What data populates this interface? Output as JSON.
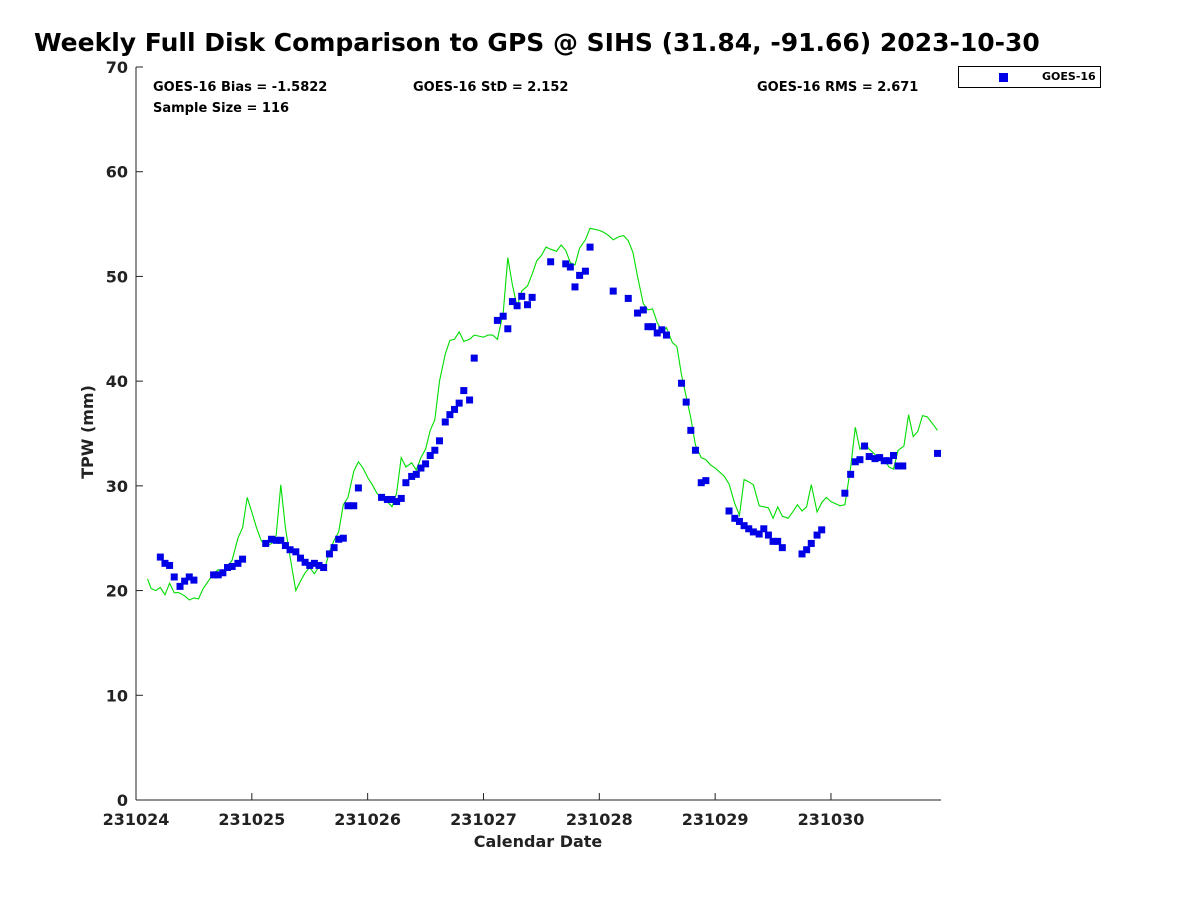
{
  "chart_data": {
    "type": "scatter",
    "title": "Weekly Full Disk Comparison to GPS @ SIHS (31.84, -91.66) 2023-10-30",
    "xlabel": "Calendar Date",
    "ylabel": "TPW (mm)",
    "xlim": [
      231024,
      231030.95
    ],
    "ylim": [
      0,
      70
    ],
    "x_tick_values": [
      231024,
      231025,
      231026,
      231027,
      231028,
      231029,
      231030
    ],
    "x_ticks": [
      "231024",
      "231025",
      "231026",
      "231027",
      "231028",
      "231029",
      "231030"
    ],
    "y_ticks": [
      0,
      10,
      20,
      30,
      40,
      50,
      60,
      70
    ],
    "grid": false,
    "legend_position": "top-right",
    "stats": {
      "bias": "GOES-16 Bias = -1.5822",
      "std": "GOES-16 StD = 2.152",
      "rms": "GOES-16 RMS = 2.671",
      "sample": "Sample Size = 116"
    },
    "series": [
      {
        "name": "GOES-16",
        "style": "markers",
        "color": "#0000e6",
        "points": [
          [
            231024.21,
            23.2
          ],
          [
            231024.25,
            22.6
          ],
          [
            231024.29,
            22.4
          ],
          [
            231024.33,
            21.3
          ],
          [
            231024.38,
            20.4
          ],
          [
            231024.42,
            20.9
          ],
          [
            231024.46,
            21.3
          ],
          [
            231024.5,
            21.0
          ],
          [
            231024.67,
            21.5
          ],
          [
            231024.71,
            21.5
          ],
          [
            231024.75,
            21.7
          ],
          [
            231024.79,
            22.2
          ],
          [
            231024.83,
            22.3
          ],
          [
            231024.88,
            22.6
          ],
          [
            231024.92,
            23.0
          ],
          [
            231025.12,
            24.5
          ],
          [
            231025.17,
            24.9
          ],
          [
            231025.21,
            24.8
          ],
          [
            231025.25,
            24.8
          ],
          [
            231025.29,
            24.3
          ],
          [
            231025.33,
            23.9
          ],
          [
            231025.38,
            23.7
          ],
          [
            231025.42,
            23.1
          ],
          [
            231025.46,
            22.7
          ],
          [
            231025.5,
            22.4
          ],
          [
            231025.54,
            22.6
          ],
          [
            231025.58,
            22.4
          ],
          [
            231025.62,
            22.2
          ],
          [
            231025.67,
            23.5
          ],
          [
            231025.71,
            24.1
          ],
          [
            231025.75,
            24.9
          ],
          [
            231025.79,
            25.0
          ],
          [
            231025.83,
            28.1
          ],
          [
            231025.88,
            28.1
          ],
          [
            231025.92,
            29.8
          ],
          [
            231026.12,
            28.9
          ],
          [
            231026.17,
            28.7
          ],
          [
            231026.21,
            28.7
          ],
          [
            231026.25,
            28.5
          ],
          [
            231026.29,
            28.8
          ],
          [
            231026.33,
            30.3
          ],
          [
            231026.38,
            30.9
          ],
          [
            231026.42,
            31.1
          ],
          [
            231026.46,
            31.7
          ],
          [
            231026.5,
            32.1
          ],
          [
            231026.54,
            32.9
          ],
          [
            231026.58,
            33.4
          ],
          [
            231026.62,
            34.3
          ],
          [
            231026.67,
            36.1
          ],
          [
            231026.71,
            36.8
          ],
          [
            231026.75,
            37.3
          ],
          [
            231026.79,
            37.9
          ],
          [
            231026.83,
            39.1
          ],
          [
            231026.88,
            38.2
          ],
          [
            231026.92,
            42.2
          ],
          [
            231027.12,
            45.8
          ],
          [
            231027.17,
            46.2
          ],
          [
            231027.21,
            45.0
          ],
          [
            231027.25,
            47.6
          ],
          [
            231027.29,
            47.2
          ],
          [
            231027.33,
            48.1
          ],
          [
            231027.38,
            47.3
          ],
          [
            231027.42,
            48.0
          ],
          [
            231027.58,
            51.4
          ],
          [
            231027.71,
            51.2
          ],
          [
            231027.75,
            50.9
          ],
          [
            231027.79,
            49.0
          ],
          [
            231027.83,
            50.1
          ],
          [
            231027.88,
            50.5
          ],
          [
            231027.92,
            52.8
          ],
          [
            231028.12,
            48.6
          ],
          [
            231028.25,
            47.9
          ],
          [
            231028.33,
            46.5
          ],
          [
            231028.38,
            46.8
          ],
          [
            231028.42,
            45.2
          ],
          [
            231028.46,
            45.2
          ],
          [
            231028.5,
            44.6
          ],
          [
            231028.54,
            44.9
          ],
          [
            231028.58,
            44.4
          ],
          [
            231028.71,
            39.8
          ],
          [
            231028.75,
            38.0
          ],
          [
            231028.79,
            35.3
          ],
          [
            231028.83,
            33.4
          ],
          [
            231028.88,
            30.3
          ],
          [
            231028.92,
            30.5
          ],
          [
            231029.12,
            27.6
          ],
          [
            231029.17,
            26.9
          ],
          [
            231029.21,
            26.6
          ],
          [
            231029.25,
            26.2
          ],
          [
            231029.29,
            25.9
          ],
          [
            231029.33,
            25.6
          ],
          [
            231029.38,
            25.4
          ],
          [
            231029.42,
            25.9
          ],
          [
            231029.46,
            25.3
          ],
          [
            231029.5,
            24.7
          ],
          [
            231029.54,
            24.7
          ],
          [
            231029.58,
            24.1
          ],
          [
            231029.75,
            23.5
          ],
          [
            231029.79,
            23.9
          ],
          [
            231029.83,
            24.5
          ],
          [
            231029.88,
            25.3
          ],
          [
            231029.92,
            25.8
          ],
          [
            231030.12,
            29.3
          ],
          [
            231030.17,
            31.1
          ],
          [
            231030.21,
            32.3
          ],
          [
            231030.25,
            32.5
          ],
          [
            231030.29,
            33.8
          ],
          [
            231030.33,
            32.8
          ],
          [
            231030.38,
            32.6
          ],
          [
            231030.42,
            32.7
          ],
          [
            231030.46,
            32.4
          ],
          [
            231030.5,
            32.4
          ],
          [
            231030.54,
            32.9
          ],
          [
            231030.58,
            31.9
          ],
          [
            231030.62,
            31.9
          ],
          [
            231030.92,
            33.1
          ]
        ]
      },
      {
        "style": "line",
        "color": "#00dd00",
        "points": [
          [
            231024.1,
            21.1
          ],
          [
            231024.13,
            20.2
          ],
          [
            231024.17,
            20.0
          ],
          [
            231024.21,
            20.3
          ],
          [
            231024.25,
            19.6
          ],
          [
            231024.29,
            20.7
          ],
          [
            231024.33,
            19.8
          ],
          [
            231024.37,
            19.8
          ],
          [
            231024.42,
            19.5
          ],
          [
            231024.46,
            19.1
          ],
          [
            231024.5,
            19.3
          ],
          [
            231024.54,
            19.2
          ],
          [
            231024.58,
            20.2
          ],
          [
            231024.63,
            21.0
          ],
          [
            231024.67,
            21.6
          ],
          [
            231024.71,
            22.0
          ],
          [
            231024.75,
            21.7
          ],
          [
            231024.79,
            22.3
          ],
          [
            231024.83,
            22.9
          ],
          [
            231024.88,
            25.0
          ],
          [
            231024.92,
            26.0
          ],
          [
            231024.96,
            28.9
          ],
          [
            231025.0,
            27.5
          ],
          [
            231025.04,
            26.0
          ],
          [
            231025.08,
            24.8
          ],
          [
            231025.12,
            24.2
          ],
          [
            231025.17,
            24.5
          ],
          [
            231025.21,
            25.3
          ],
          [
            231025.25,
            30.1
          ],
          [
            231025.29,
            26.0
          ],
          [
            231025.33,
            23.2
          ],
          [
            231025.38,
            20.0
          ],
          [
            231025.42,
            20.9
          ],
          [
            231025.46,
            21.7
          ],
          [
            231025.5,
            22.2
          ],
          [
            231025.54,
            21.6
          ],
          [
            231025.58,
            22.3
          ],
          [
            231025.63,
            22.1
          ],
          [
            231025.67,
            23.7
          ],
          [
            231025.71,
            24.8
          ],
          [
            231025.75,
            25.6
          ],
          [
            231025.79,
            28.2
          ],
          [
            231025.83,
            28.9
          ],
          [
            231025.88,
            31.4
          ],
          [
            231025.92,
            32.3
          ],
          [
            231025.96,
            31.7
          ],
          [
            231026.0,
            30.8
          ],
          [
            231026.04,
            30.1
          ],
          [
            231026.08,
            29.3
          ],
          [
            231026.12,
            28.8
          ],
          [
            231026.17,
            28.5
          ],
          [
            231026.21,
            28.0
          ],
          [
            231026.25,
            29.3
          ],
          [
            231026.29,
            32.7
          ],
          [
            231026.33,
            31.8
          ],
          [
            231026.38,
            32.2
          ],
          [
            231026.42,
            31.5
          ],
          [
            231026.46,
            32.7
          ],
          [
            231026.5,
            33.5
          ],
          [
            231026.54,
            35.3
          ],
          [
            231026.58,
            36.3
          ],
          [
            231026.62,
            40.0
          ],
          [
            231026.67,
            42.6
          ],
          [
            231026.71,
            43.9
          ],
          [
            231026.75,
            44.0
          ],
          [
            231026.79,
            44.7
          ],
          [
            231026.83,
            43.8
          ],
          [
            231026.88,
            44.0
          ],
          [
            231026.92,
            44.4
          ],
          [
            231026.96,
            44.3
          ],
          [
            231027.0,
            44.2
          ],
          [
            231027.04,
            44.4
          ],
          [
            231027.08,
            44.4
          ],
          [
            231027.12,
            44.0
          ],
          [
            231027.17,
            46.5
          ],
          [
            231027.21,
            51.8
          ],
          [
            231027.25,
            49.2
          ],
          [
            231027.29,
            47.1
          ],
          [
            231027.33,
            48.6
          ],
          [
            231027.38,
            49.1
          ],
          [
            231027.42,
            50.2
          ],
          [
            231027.46,
            51.5
          ],
          [
            231027.5,
            52.0
          ],
          [
            231027.54,
            52.8
          ],
          [
            231027.58,
            52.6
          ],
          [
            231027.63,
            52.4
          ],
          [
            231027.67,
            53.0
          ],
          [
            231027.71,
            52.5
          ],
          [
            231027.75,
            51.3
          ],
          [
            231027.79,
            51.1
          ],
          [
            231027.83,
            52.7
          ],
          [
            231027.88,
            53.5
          ],
          [
            231027.92,
            54.6
          ],
          [
            231027.96,
            54.5
          ],
          [
            231028.0,
            54.4
          ],
          [
            231028.04,
            54.2
          ],
          [
            231028.08,
            53.9
          ],
          [
            231028.12,
            53.5
          ],
          [
            231028.17,
            53.8
          ],
          [
            231028.21,
            53.9
          ],
          [
            231028.25,
            53.4
          ],
          [
            231028.29,
            52.3
          ],
          [
            231028.33,
            50.0
          ],
          [
            231028.38,
            47.4
          ],
          [
            231028.42,
            46.8
          ],
          [
            231028.46,
            46.9
          ],
          [
            231028.5,
            45.6
          ],
          [
            231028.54,
            44.8
          ],
          [
            231028.58,
            45.1
          ],
          [
            231028.63,
            43.7
          ],
          [
            231028.67,
            43.3
          ],
          [
            231028.71,
            40.6
          ],
          [
            231028.75,
            38.5
          ],
          [
            231028.79,
            36.5
          ],
          [
            231028.83,
            33.9
          ],
          [
            231028.88,
            32.7
          ],
          [
            231028.92,
            32.5
          ],
          [
            231028.96,
            32.0
          ],
          [
            231029.0,
            31.7
          ],
          [
            231029.04,
            31.3
          ],
          [
            231029.08,
            30.9
          ],
          [
            231029.12,
            30.2
          ],
          [
            231029.17,
            28.3
          ],
          [
            231029.21,
            27.2
          ],
          [
            231029.25,
            30.6
          ],
          [
            231029.29,
            30.4
          ],
          [
            231029.33,
            30.1
          ],
          [
            231029.38,
            28.1
          ],
          [
            231029.42,
            28.0
          ],
          [
            231029.46,
            27.9
          ],
          [
            231029.5,
            26.9
          ],
          [
            231029.54,
            28.0
          ],
          [
            231029.58,
            27.1
          ],
          [
            231029.63,
            26.9
          ],
          [
            231029.67,
            27.5
          ],
          [
            231029.71,
            28.2
          ],
          [
            231029.75,
            27.6
          ],
          [
            231029.79,
            28.0
          ],
          [
            231029.83,
            30.1
          ],
          [
            231029.88,
            27.5
          ],
          [
            231029.92,
            28.4
          ],
          [
            231029.96,
            28.9
          ],
          [
            231030.0,
            28.5
          ],
          [
            231030.04,
            28.3
          ],
          [
            231030.08,
            28.1
          ],
          [
            231030.12,
            28.2
          ],
          [
            231030.17,
            31.8
          ],
          [
            231030.21,
            35.6
          ],
          [
            231030.25,
            33.5
          ],
          [
            231030.29,
            34.1
          ],
          [
            231030.33,
            33.5
          ],
          [
            231030.38,
            33.0
          ],
          [
            231030.42,
            32.5
          ],
          [
            231030.46,
            32.6
          ],
          [
            231030.5,
            31.8
          ],
          [
            231030.54,
            31.6
          ],
          [
            231030.58,
            33.4
          ],
          [
            231030.63,
            33.8
          ],
          [
            231030.67,
            36.8
          ],
          [
            231030.71,
            34.7
          ],
          [
            231030.75,
            35.2
          ],
          [
            231030.79,
            36.7
          ],
          [
            231030.83,
            36.6
          ],
          [
            231030.88,
            35.9
          ],
          [
            231030.92,
            35.3
          ]
        ]
      }
    ]
  }
}
